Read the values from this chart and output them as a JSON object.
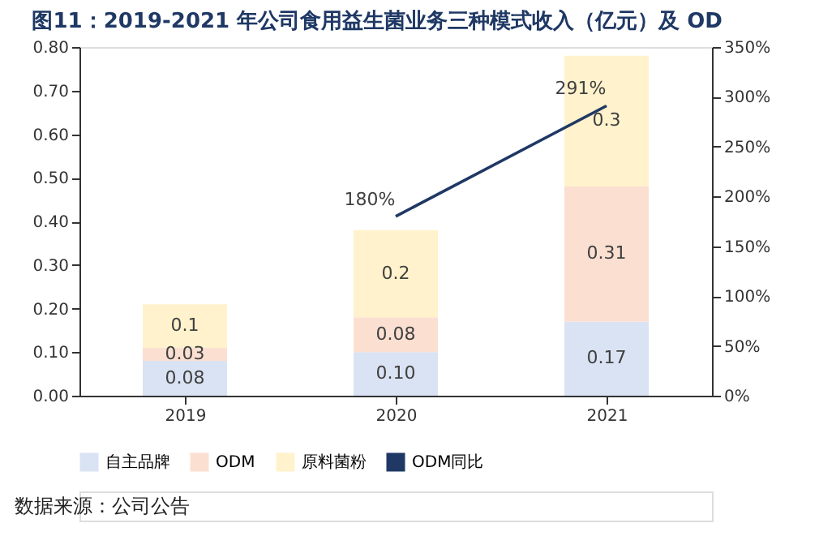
{
  "chart_data": {
    "type": "bar",
    "title": "图11：2019-2021 年公司食用益生菌业务三种模式收入（亿元）及 OD",
    "categories": [
      "2019",
      "2020",
      "2021"
    ],
    "stacked": true,
    "series": [
      {
        "name": "自主品牌",
        "color": "#dae3f3",
        "values": [
          0.08,
          0.1,
          0.17
        ],
        "value_labels": [
          "0.08",
          "0.10",
          "0.17"
        ]
      },
      {
        "name": "ODM",
        "color": "#fbe0d2",
        "values": [
          0.03,
          0.08,
          0.31
        ],
        "value_labels": [
          "0.03",
          "0.08",
          "0.31"
        ]
      },
      {
        "name": "原料菌粉",
        "color": "#fff2cc",
        "values": [
          0.1,
          0.2,
          0.3
        ],
        "value_labels": [
          "0.1",
          "0.2",
          "0.3"
        ]
      },
      {
        "name": "ODM同比",
        "type": "line",
        "axis": "y2",
        "color": "#1f3864",
        "values": [
          null,
          180,
          291
        ],
        "value_labels": [
          null,
          "180%",
          "291%"
        ]
      }
    ],
    "ylim": [
      0,
      0.8
    ],
    "yticks": [
      {
        "value": 0,
        "label": "0.00"
      },
      {
        "value": 0.1,
        "label": "0.10"
      },
      {
        "value": 0.2,
        "label": "0.20"
      },
      {
        "value": 0.3,
        "label": "0.30"
      },
      {
        "value": 0.4,
        "label": "0.40"
      },
      {
        "value": 0.5,
        "label": "0.50"
      },
      {
        "value": 0.6,
        "label": "0.60"
      },
      {
        "value": 0.7,
        "label": "0.70"
      },
      {
        "value": 0.8,
        "label": "0.80"
      }
    ],
    "y2lim": [
      0,
      350
    ],
    "y2ticks": [
      {
        "value": 0,
        "label": "0%"
      },
      {
        "value": 50,
        "label": "50%"
      },
      {
        "value": 100,
        "label": "100%"
      },
      {
        "value": 150,
        "label": "150%"
      },
      {
        "value": 200,
        "label": "200%"
      },
      {
        "value": 250,
        "label": "250%"
      },
      {
        "value": 300,
        "label": "300%"
      },
      {
        "value": 350,
        "label": "350%"
      }
    ],
    "grid": false,
    "legend": "bottom",
    "marker": "none",
    "annotations": [
      "数据来源：公司公告"
    ]
  }
}
